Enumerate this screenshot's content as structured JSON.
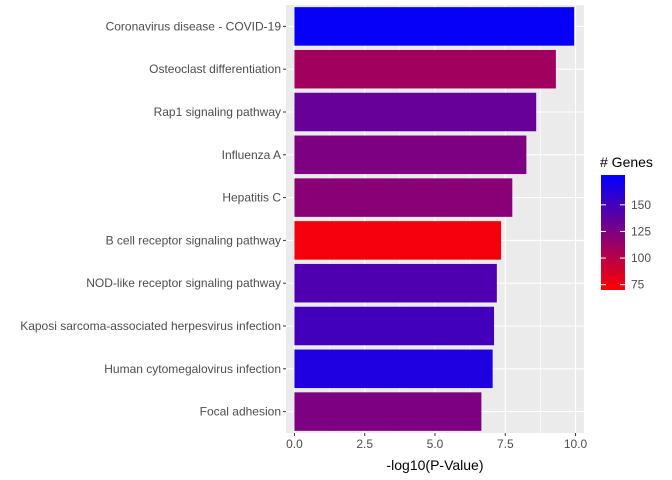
{
  "chart_data": {
    "type": "bar",
    "orientation": "horizontal",
    "title": "",
    "xlabel": "-log10(P-Value)",
    "ylabel": "",
    "xlim": [
      -0.3,
      10.3
    ],
    "x_ticks": [
      0.0,
      2.5,
      5.0,
      7.5,
      10.0
    ],
    "x_tick_labels": [
      "0.0",
      "2.5",
      "5.0",
      "7.5",
      "10.0"
    ],
    "grid": true,
    "categories": [
      "Coronavirus disease - COVID-19",
      "Osteoclast differentiation",
      "Rap1 signaling pathway",
      "Influenza A",
      "Hepatitis C",
      "B cell receptor signaling pathway",
      "NOD-like receptor signaling pathway",
      "Kaposi sarcoma-associated herpesvirus infection",
      "Human cytomegalovirus infection",
      "Focal adhesion"
    ],
    "values": [
      9.95,
      9.3,
      8.6,
      8.25,
      7.75,
      7.35,
      7.2,
      7.1,
      7.05,
      6.65
    ],
    "color_values": [
      175,
      110,
      135,
      125,
      120,
      75,
      145,
      150,
      165,
      125
    ],
    "legend": {
      "title": "# Genes",
      "position": "right",
      "range": [
        70,
        178
      ],
      "ticks": [
        75,
        100,
        125,
        150
      ],
      "tick_labels": [
        "75",
        "100",
        "125",
        "150"
      ],
      "low_color": "#ff0000",
      "high_color": "#0000ff"
    },
    "panel_color": "#ebebeb",
    "grid_color": "#ffffff"
  }
}
